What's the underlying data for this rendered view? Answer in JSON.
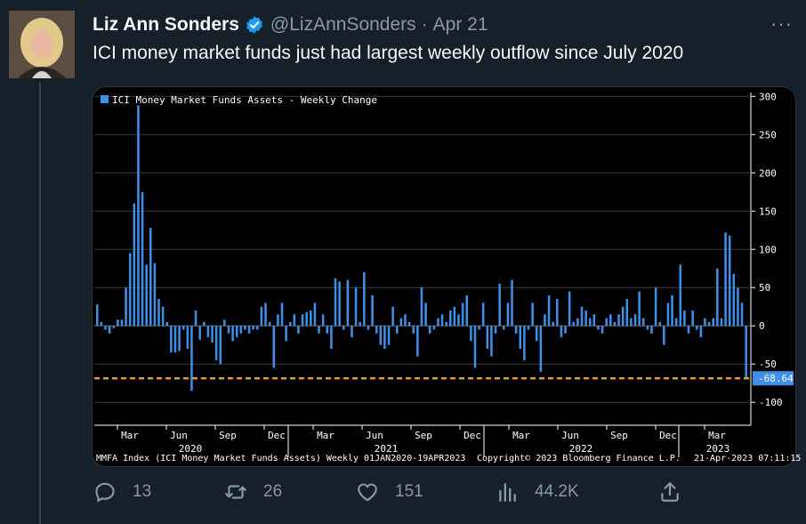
{
  "tweet": {
    "author_name": "Liz Ann Sonders",
    "handle": "@LizAnnSonders",
    "separator": "·",
    "date": "Apr 21",
    "text": "ICI money market funds just had largest weekly outflow since July 2020",
    "more_label": "···"
  },
  "actions": {
    "replies": "13",
    "retweets": "26",
    "likes": "151",
    "views": "44.2K"
  },
  "colors": {
    "background": "#15202b",
    "verified": "#1d9bf0",
    "bar": "#3d8fe8",
    "last_value_line": "#f5a23c"
  },
  "chart_data": {
    "type": "bar",
    "legend": "ICI Money Market Funds Assets - Weekly Change",
    "footer_left": "MMFA Index (ICI Money Market Funds Assets)  Weekly 01JAN2020-19APR2023",
    "footer_center": "Copyright© 2023 Bloomberg Finance L.P.",
    "footer_right": "21-Apr-2023 07:11:15",
    "last_value_label": "-68.64",
    "last_value": -68.64,
    "ylim": [
      -130,
      305
    ],
    "yticks": [
      300,
      250,
      200,
      150,
      100,
      50,
      0,
      -50,
      -100
    ],
    "x_tick_labels": [
      "Mar",
      "Jun",
      "Sep",
      "Dec",
      "Mar",
      "Jun",
      "Sep",
      "Dec",
      "Mar",
      "Jun",
      "Sep",
      "Dec",
      "Mar"
    ],
    "x_year_labels": [
      "2020",
      "2021",
      "2022",
      "2023"
    ],
    "grid": true,
    "values": [
      28,
      5,
      -5,
      -10,
      -3,
      8,
      8,
      50,
      95,
      160,
      288,
      175,
      80,
      128,
      82,
      35,
      25,
      5,
      -35,
      -35,
      -33,
      -5,
      -30,
      -85,
      20,
      -18,
      5,
      -15,
      -22,
      -45,
      -50,
      8,
      -10,
      -20,
      -15,
      -10,
      -5,
      -10,
      -5,
      -5,
      25,
      30,
      5,
      -55,
      15,
      30,
      -20,
      5,
      15,
      -10,
      15,
      18,
      20,
      30,
      -10,
      15,
      -10,
      -30,
      62,
      58,
      -5,
      60,
      -15,
      50,
      5,
      70,
      -5,
      40,
      -10,
      -25,
      -30,
      -25,
      25,
      -10,
      10,
      15,
      5,
      -10,
      -40,
      50,
      30,
      -10,
      -5,
      10,
      15,
      5,
      20,
      25,
      15,
      30,
      40,
      -20,
      -55,
      -5,
      30,
      -30,
      -40,
      -10,
      55,
      -5,
      30,
      60,
      -10,
      -30,
      -45,
      -5,
      30,
      -20,
      -60,
      15,
      40,
      5,
      35,
      -15,
      -10,
      45,
      5,
      10,
      25,
      20,
      10,
      15,
      -5,
      -10,
      10,
      15,
      5,
      15,
      25,
      35,
      10,
      15,
      45,
      10,
      -5,
      -10,
      50,
      5,
      -25,
      30,
      40,
      10,
      80,
      20,
      -10,
      20,
      -5,
      -15,
      10,
      5,
      10,
      75,
      10,
      122,
      118,
      68,
      50,
      30,
      -68.64
    ]
  }
}
